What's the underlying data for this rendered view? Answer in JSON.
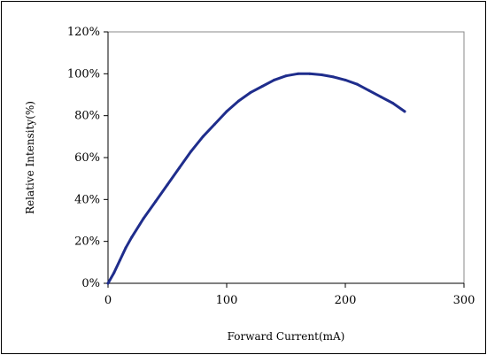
{
  "chart_data": {
    "type": "line",
    "title": "",
    "xlabel": "Forward Current(mA)",
    "ylabel": "Relative Intensity(%)",
    "xlim": [
      0,
      300
    ],
    "ylim": [
      0,
      120
    ],
    "x_ticks": [
      0,
      100,
      200,
      300
    ],
    "x_tick_labels": [
      "0",
      "100",
      "200",
      "300"
    ],
    "y_ticks": [
      0,
      20,
      40,
      60,
      80,
      100,
      120
    ],
    "y_tick_labels": [
      "0%",
      "20%",
      "40%",
      "60%",
      "80%",
      "100%",
      "120%"
    ],
    "grid": false,
    "legend": "none",
    "series": [
      {
        "color": "#1f2d8c",
        "x": [
          0,
          5,
          10,
          15,
          20,
          30,
          40,
          50,
          60,
          70,
          80,
          90,
          100,
          110,
          120,
          130,
          140,
          150,
          160,
          170,
          180,
          190,
          200,
          210,
          220,
          230,
          240,
          250
        ],
        "y": [
          0,
          5,
          11,
          17,
          22,
          31,
          39,
          47,
          55,
          63,
          70,
          76,
          82,
          87,
          91,
          94,
          97,
          99,
          100,
          100,
          99.5,
          98.5,
          97,
          95,
          92,
          89,
          86,
          82
        ]
      }
    ]
  }
}
